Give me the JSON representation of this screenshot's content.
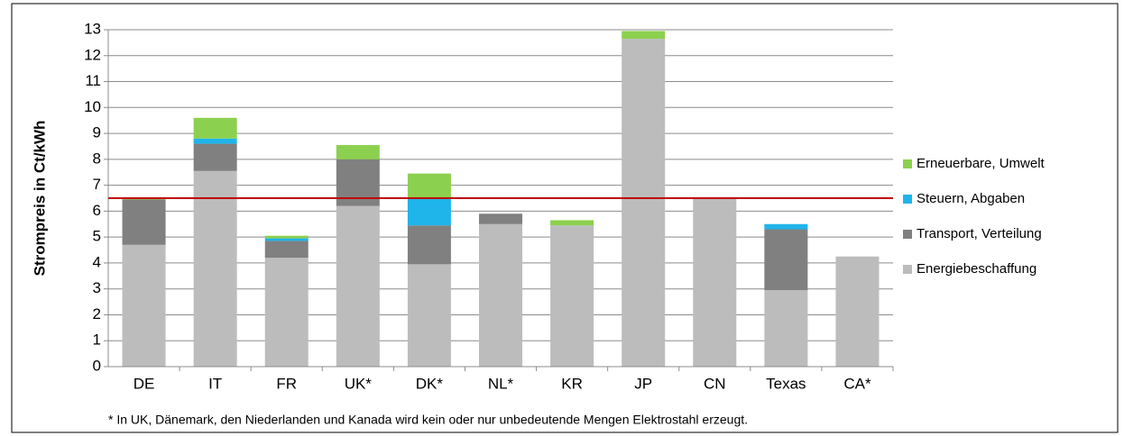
{
  "chart_data": {
    "type": "stacked_bar",
    "y_label": "Strompreis in Ct/kWh",
    "footnote": "* In UK, Dänemark, den Niederlanden und Kanada wird kein oder nur unbedeutende Mengen Elektrostahl erzeugt.",
    "categories": [
      "DE",
      "IT",
      "FR",
      "UK*",
      "DK*",
      "NL*",
      "KR",
      "JP",
      "CN",
      "Texas",
      "CA*"
    ],
    "series": [
      {
        "name": "Energiebeschaffung",
        "color": "#bcbcbc",
        "values": [
          4.7,
          7.55,
          4.2,
          6.2,
          3.95,
          5.5,
          5.45,
          12.65,
          6.5,
          2.95,
          4.25
        ]
      },
      {
        "name": "Transport, Verteilung",
        "color": "#808080",
        "values": [
          1.75,
          1.05,
          0.65,
          1.8,
          1.5,
          0.4,
          0,
          0,
          0,
          2.35,
          0
        ]
      },
      {
        "name": "Steuern, Abgaben",
        "color": "#1fb4ea",
        "values": [
          0,
          0.2,
          0.1,
          0,
          1.05,
          0,
          0,
          0,
          0,
          0.2,
          0
        ]
      },
      {
        "name": "Erneuerbare, Umwelt",
        "color": "#8cd04f",
        "values": [
          0.05,
          0.8,
          0.1,
          0.55,
          0.95,
          0,
          0.2,
          0.3,
          0,
          0,
          0
        ]
      }
    ],
    "reference_line": {
      "value": 6.5,
      "color": "#c00000"
    },
    "ylim": [
      0,
      13
    ],
    "yticks": [
      0,
      1,
      2,
      3,
      4,
      5,
      6,
      7,
      8,
      9,
      10,
      11,
      12,
      13
    ],
    "grid": true,
    "legend": "right"
  }
}
